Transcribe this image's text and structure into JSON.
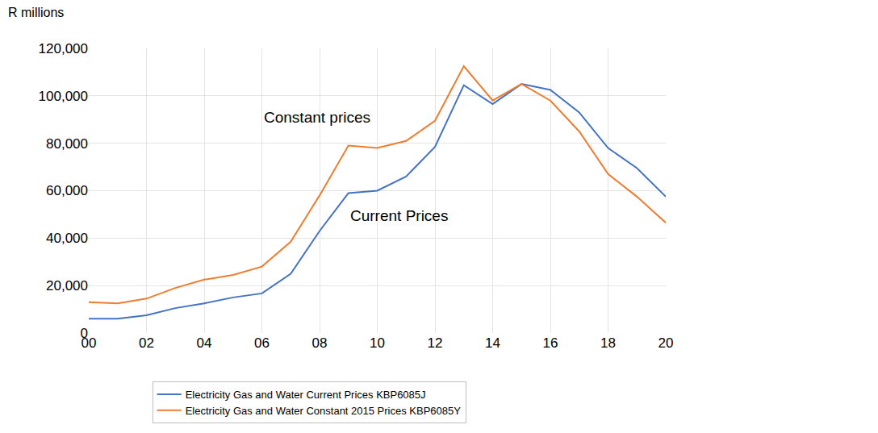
{
  "chart_data": {
    "type": "line",
    "y_label": "R millions",
    "categories": [
      "00",
      null,
      "02",
      null,
      "04",
      null,
      "06",
      null,
      "08",
      null,
      "10",
      null,
      "12",
      null,
      "14",
      null,
      "16",
      null,
      "18",
      null,
      "20"
    ],
    "series": [
      {
        "name": "Electricity Gas and Water Current Prices KBP6085J",
        "color": "#4472C4",
        "values": [
          6000,
          6000,
          7500,
          10500,
          12500,
          15000,
          16700,
          25000,
          43000,
          59000,
          60000,
          66000,
          78500,
          104500,
          96500,
          105000,
          102500,
          93000,
          78000,
          69500,
          57500
        ]
      },
      {
        "name": "Electricity Gas and Water Constant 2015 Prices KBP6085Y",
        "color": "#ED7D31",
        "values": [
          13000,
          12500,
          14500,
          19000,
          22500,
          24500,
          28000,
          38500,
          58000,
          79000,
          78000,
          81000,
          89500,
          112500,
          98000,
          105000,
          98000,
          85000,
          67000,
          57500,
          46500
        ]
      }
    ],
    "ylim": [
      0,
      120000
    ],
    "yticks": [
      0,
      {
        "value": 20000,
        "label": "20,000"
      },
      {
        "value": 40000,
        "label": "40,000"
      },
      {
        "value": 60000,
        "label": "60,000"
      },
      {
        "value": 80000,
        "label": "80,000"
      },
      {
        "value": 100000,
        "label": "100,000"
      },
      {
        "value": 120000,
        "label": "120,000"
      }
    ],
    "grid": true,
    "legend": "bottom",
    "annotations": [
      {
        "text": "Constant prices",
        "x": 6,
        "y": 91000
      },
      {
        "text": "Current Prices",
        "x": 9,
        "y": 49500
      }
    ]
  }
}
